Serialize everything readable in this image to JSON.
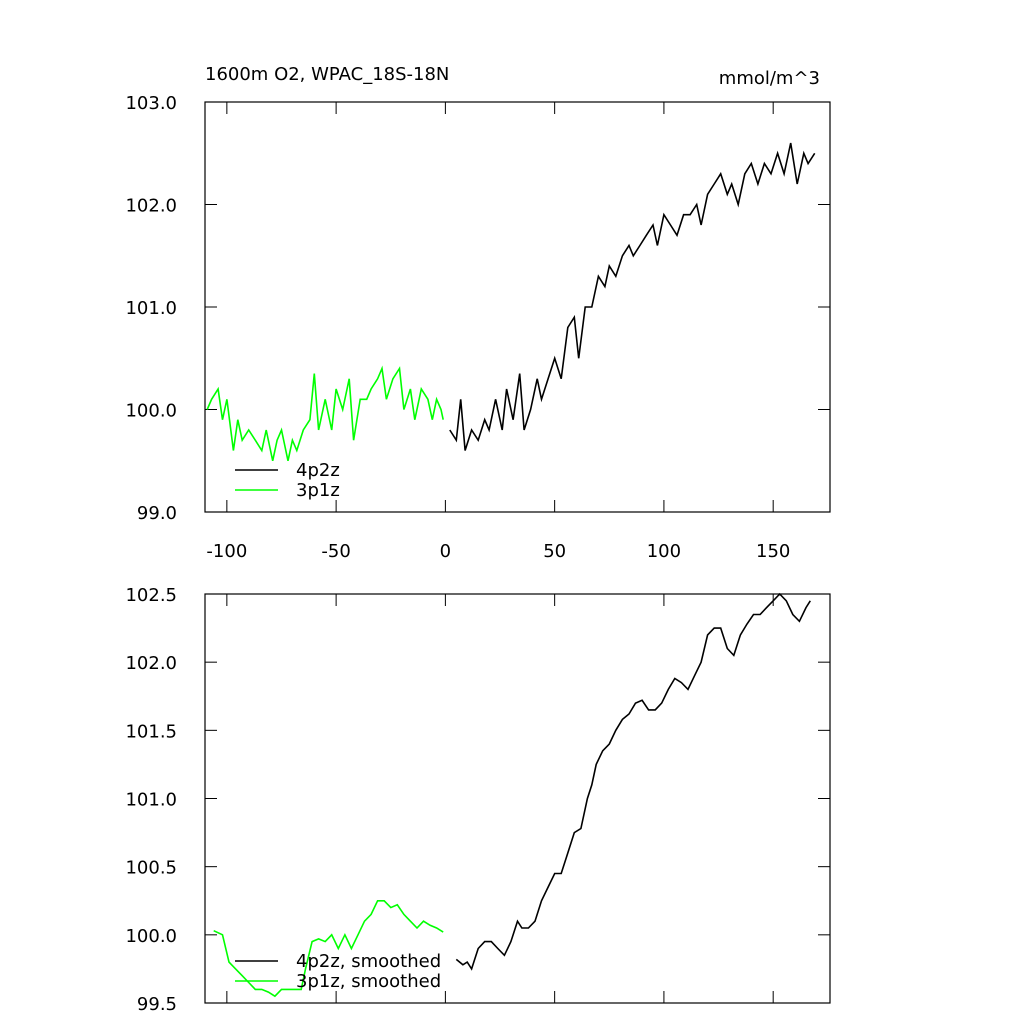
{
  "chart_data": [
    {
      "type": "line",
      "title": "1600m O2, WPAC_18S-18N",
      "subtitle": "mmol/m^3",
      "xlim": [
        -110,
        176
      ],
      "xticks": [
        -100,
        -50,
        0,
        50,
        100,
        150
      ],
      "ylim": [
        99,
        103
      ],
      "yticks": [
        {
          "value": 99,
          "label": "99.0"
        },
        {
          "value": 100,
          "label": "100.0"
        },
        {
          "value": 101,
          "label": "101.0"
        },
        {
          "value": 102,
          "label": "102.0"
        },
        {
          "value": 103,
          "label": "103.0"
        }
      ],
      "legend": "bottom-left",
      "series": [
        {
          "name": "4p2z",
          "color": "#000000",
          "x": [
            2,
            5,
            7,
            9,
            12,
            15,
            18,
            20,
            23,
            26,
            28,
            31,
            34,
            36,
            39,
            42,
            44,
            47,
            50,
            53,
            56,
            59,
            61,
            64,
            67,
            70,
            73,
            75,
            78,
            81,
            84,
            86,
            89,
            92,
            95,
            97,
            100,
            103,
            106,
            109,
            112,
            115,
            117,
            120,
            123,
            126,
            129,
            131,
            134,
            137,
            140,
            143,
            146,
            149,
            152,
            155,
            158,
            161,
            164,
            166,
            169
          ],
          "values": [
            99.8,
            99.7,
            100.1,
            99.6,
            99.8,
            99.7,
            99.9,
            99.8,
            100.1,
            99.8,
            100.2,
            99.9,
            100.35,
            99.8,
            100.0,
            100.3,
            100.1,
            100.3,
            100.5,
            100.3,
            100.8,
            100.9,
            100.5,
            101.0,
            101.0,
            101.3,
            101.2,
            101.4,
            101.3,
            101.5,
            101.6,
            101.5,
            101.6,
            101.7,
            101.8,
            101.6,
            101.9,
            101.8,
            101.7,
            101.9,
            101.9,
            102.0,
            101.8,
            102.1,
            102.2,
            102.3,
            102.1,
            102.2,
            102.0,
            102.3,
            102.4,
            102.2,
            102.4,
            102.3,
            102.5,
            102.3,
            102.6,
            102.2,
            102.5,
            102.4,
            102.5
          ]
        },
        {
          "name": "3p1z",
          "color": "#00ff00",
          "x": [
            -109,
            -107,
            -104,
            -102,
            -100,
            -97,
            -95,
            -93,
            -90,
            -87,
            -84,
            -82,
            -79,
            -77,
            -75,
            -72,
            -70,
            -68,
            -65,
            -62,
            -60,
            -58,
            -55,
            -52,
            -50,
            -47,
            -44,
            -42,
            -39,
            -36,
            -34,
            -31,
            -29,
            -27,
            -24,
            -21,
            -19,
            -16,
            -14,
            -11,
            -8,
            -6,
            -4,
            -2,
            -1
          ],
          "values": [
            100.0,
            100.1,
            100.2,
            99.9,
            100.1,
            99.6,
            99.9,
            99.7,
            99.8,
            99.7,
            99.6,
            99.8,
            99.5,
            99.7,
            99.8,
            99.5,
            99.7,
            99.6,
            99.8,
            99.9,
            100.35,
            99.8,
            100.1,
            99.8,
            100.2,
            100.0,
            100.3,
            99.7,
            100.1,
            100.1,
            100.2,
            100.3,
            100.4,
            100.1,
            100.3,
            100.4,
            100.0,
            100.2,
            99.9,
            100.2,
            100.1,
            99.9,
            100.1,
            100.0,
            99.9
          ]
        }
      ]
    },
    {
      "type": "line",
      "xlim": [
        -110,
        176
      ],
      "xticks": [
        -100,
        -50,
        0,
        50,
        100,
        150
      ],
      "ylim": [
        99.5,
        102.5
      ],
      "yticks": [
        99.5,
        {
          "value": 100,
          "label": "100.0"
        },
        100.5,
        {
          "value": 101,
          "label": "101.0"
        },
        101.5,
        {
          "value": 102,
          "label": "102.0"
        },
        102.5
      ],
      "legend": "bottom-left",
      "series": [
        {
          "name": "4p2z, smoothed",
          "color": "#000000",
          "x": [
            5,
            8,
            10,
            12,
            15,
            18,
            21,
            24,
            27,
            30,
            33,
            35,
            38,
            41,
            44,
            47,
            50,
            53,
            56,
            59,
            62,
            65,
            67,
            69,
            72,
            75,
            78,
            81,
            84,
            87,
            90,
            93,
            96,
            99,
            102,
            105,
            108,
            111,
            114,
            117,
            120,
            123,
            126,
            129,
            132,
            135,
            138,
            141,
            144,
            147,
            150,
            153,
            156,
            159,
            162,
            165,
            167
          ],
          "values": [
            99.82,
            99.78,
            99.8,
            99.75,
            99.9,
            99.95,
            99.95,
            99.9,
            99.85,
            99.95,
            100.1,
            100.05,
            100.05,
            100.1,
            100.25,
            100.35,
            100.45,
            100.45,
            100.6,
            100.75,
            100.78,
            101.0,
            101.1,
            101.25,
            101.35,
            101.4,
            101.5,
            101.58,
            101.62,
            101.7,
            101.72,
            101.65,
            101.65,
            101.7,
            101.8,
            101.88,
            101.85,
            101.8,
            101.9,
            102.0,
            102.2,
            102.25,
            102.25,
            102.1,
            102.05,
            102.2,
            102.28,
            102.35,
            102.35,
            102.4,
            102.45,
            102.5,
            102.45,
            102.35,
            102.3,
            102.4,
            102.45
          ]
        },
        {
          "name": "3p1z, smoothed",
          "color": "#00ff00",
          "x": [
            -106,
            -102,
            -99,
            -96,
            -93,
            -90,
            -87,
            -84,
            -81,
            -78,
            -75,
            -72,
            -69,
            -66,
            -64,
            -61,
            -58,
            -55,
            -52,
            -49,
            -46,
            -43,
            -40,
            -37,
            -34,
            -31,
            -28,
            -25,
            -22,
            -19,
            -16,
            -13,
            -10,
            -7,
            -4,
            -1
          ],
          "values": [
            100.03,
            100.0,
            99.8,
            99.75,
            99.7,
            99.65,
            99.6,
            99.6,
            99.58,
            99.55,
            99.6,
            99.6,
            99.6,
            99.6,
            99.75,
            99.95,
            99.97,
            99.95,
            100.0,
            99.9,
            100.0,
            99.9,
            100.0,
            100.1,
            100.15,
            100.25,
            100.25,
            100.2,
            100.22,
            100.15,
            100.1,
            100.05,
            100.1,
            100.07,
            100.05,
            100.02
          ]
        }
      ]
    }
  ]
}
